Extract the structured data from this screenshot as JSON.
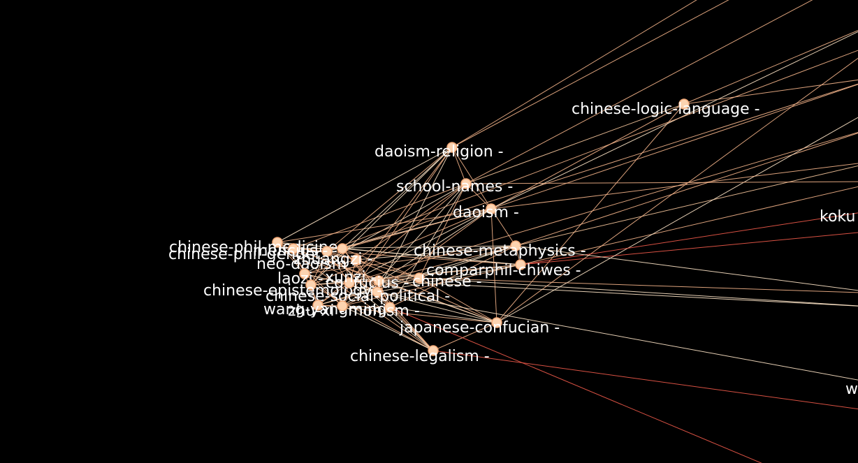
{
  "graph": {
    "background": "#000000",
    "node_color": "#fcd3b0",
    "edge_colors": [
      "#f4b48a",
      "#ffe6c8",
      "#f05a4a",
      "#f7c89d"
    ],
    "nodes": [
      {
        "id": "chinese-logic-language",
        "label": "chinese-logic-language -"
      },
      {
        "id": "daoism-religion",
        "label": "daoism-religion -"
      },
      {
        "id": "school-names",
        "label": "school-names -"
      },
      {
        "id": "daoism",
        "label": "daoism -"
      },
      {
        "id": "chinese-metaphysics",
        "label": "chinese-metaphysics -"
      },
      {
        "id": "comparphil-chiwes",
        "label": "comparphil-chiwes -"
      },
      {
        "id": "confucius",
        "label": "confucius -"
      },
      {
        "id": "chinese-social-political",
        "label": "chinese-social-political -"
      },
      {
        "id": "japanese-confucian",
        "label": "japanese-confucian -"
      },
      {
        "id": "chinese-legalism",
        "label": "chinese-legalism -"
      },
      {
        "id": "chinese-phil-medicine",
        "label": "chinese-phil-medicine -"
      },
      {
        "id": "chinese-phil-gender",
        "label": "chinese-phil-gender -"
      },
      {
        "id": "neo-daoism",
        "label": "neo-daoism -"
      },
      {
        "id": "laozi",
        "label": "laozi -"
      },
      {
        "id": "chinese-epistemology",
        "label": "chinese-epistemology -"
      },
      {
        "id": "wang-yangming",
        "label": "wang-yangming -"
      },
      {
        "id": "zhu-xi",
        "label": "zhu-xi -"
      },
      {
        "id": "mohism",
        "label": "mohism -"
      },
      {
        "id": "mencius",
        "label": "mencius -"
      },
      {
        "id": "zhuangzi",
        "label": "zhuangzi -"
      },
      {
        "id": "xunzi",
        "label": "xunzi -"
      },
      {
        "id": "chinese",
        "label": "chinese -"
      },
      {
        "id": "koku",
        "label": "koku"
      },
      {
        "id": "w",
        "label": "w"
      }
    ]
  }
}
